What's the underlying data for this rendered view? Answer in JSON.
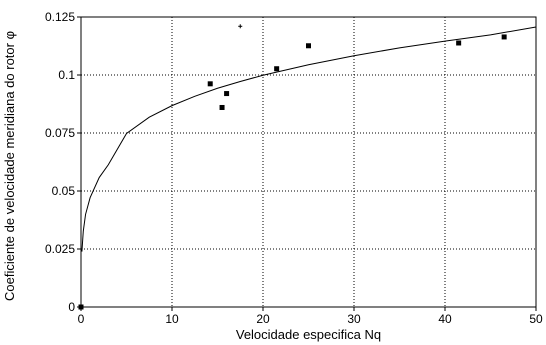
{
  "chart_data": {
    "type": "scatter",
    "xlabel": "Velocidade especifica Nq",
    "ylabel": "Coeficiente de velocidade meridiana do rotor φ",
    "xlim": [
      0,
      50
    ],
    "ylim": [
      0,
      0.125
    ],
    "x_ticks": [
      0,
      10,
      20,
      30,
      40,
      50
    ],
    "y_ticks": [
      0,
      0.025,
      0.05,
      0.075,
      0.1,
      0.125
    ],
    "x_tick_labels": [
      "0",
      "10",
      "20",
      "30",
      "40",
      "50"
    ],
    "y_tick_labels": [
      "0",
      "0.025",
      "0.05",
      "0.075",
      "0.1",
      "0.125"
    ],
    "grid": true,
    "grid_style": "dotted",
    "series": [
      {
        "kind": "markers",
        "marker": "square",
        "points": [
          {
            "x": 0,
            "y": 0
          },
          {
            "x": 14.2,
            "y": 0.0962
          },
          {
            "x": 15.5,
            "y": 0.086
          },
          {
            "x": 16.0,
            "y": 0.092
          },
          {
            "x": 21.5,
            "y": 0.1027
          },
          {
            "x": 25.0,
            "y": 0.1126
          },
          {
            "x": 41.5,
            "y": 0.1138
          },
          {
            "x": 46.5,
            "y": 0.1164
          }
        ]
      },
      {
        "kind": "markers",
        "marker": "plus",
        "points": [
          {
            "x": 17.5,
            "y": 0.121
          }
        ]
      },
      {
        "kind": "line",
        "shape": "power",
        "points": [
          {
            "x": 0.1,
            "y": 0.0239
          },
          {
            "x": 0.25,
            "y": 0.0327
          },
          {
            "x": 0.5,
            "y": 0.0399
          },
          {
            "x": 1,
            "y": 0.0471
          },
          {
            "x": 2,
            "y": 0.0558
          },
          {
            "x": 3,
            "y": 0.0613
          },
          {
            "x": 5,
            "y": 0.0748
          },
          {
            "x": 7.5,
            "y": 0.0818
          },
          {
            "x": 10,
            "y": 0.0868
          },
          {
            "x": 12.5,
            "y": 0.0908
          },
          {
            "x": 15,
            "y": 0.0943
          },
          {
            "x": 17.5,
            "y": 0.0972
          },
          {
            "x": 20,
            "y": 0.0999
          },
          {
            "x": 25,
            "y": 0.1044
          },
          {
            "x": 30,
            "y": 0.1083
          },
          {
            "x": 35,
            "y": 0.1117
          },
          {
            "x": 40,
            "y": 0.1146
          },
          {
            "x": 45,
            "y": 0.1173
          },
          {
            "x": 50,
            "y": 0.1207
          }
        ]
      }
    ]
  }
}
